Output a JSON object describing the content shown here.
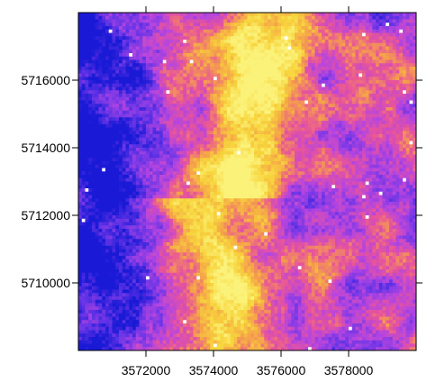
{
  "chart_data": {
    "type": "heatmap",
    "title": "",
    "xlabel": "",
    "ylabel": "",
    "xlim": [
      3570000,
      3580000
    ],
    "ylim": [
      5708000,
      5718000
    ],
    "x_ticks": [
      3572000,
      3574000,
      3576000,
      3578000
    ],
    "x_tick_labels": [
      "3572000",
      "3574000",
      "3576000",
      "3578000"
    ],
    "y_ticks": [
      5710000,
      5712000,
      5714000,
      5716000
    ],
    "y_tick_labels": [
      "5710000",
      "5712000",
      "5714000",
      "5716000"
    ],
    "grid_cells": [
      100,
      100
    ],
    "colorscale": [
      "#1a1ad6",
      "#6a35e6",
      "#b545e0",
      "#e8549a",
      "#f5a04a",
      "#f7d43c",
      "#fbf27a",
      "#ffffff"
    ],
    "legend": false,
    "pattern": "bright yellow ridge running north-south through the centre, dark blue low values in the west, mixed purple-magenta values in the east"
  }
}
